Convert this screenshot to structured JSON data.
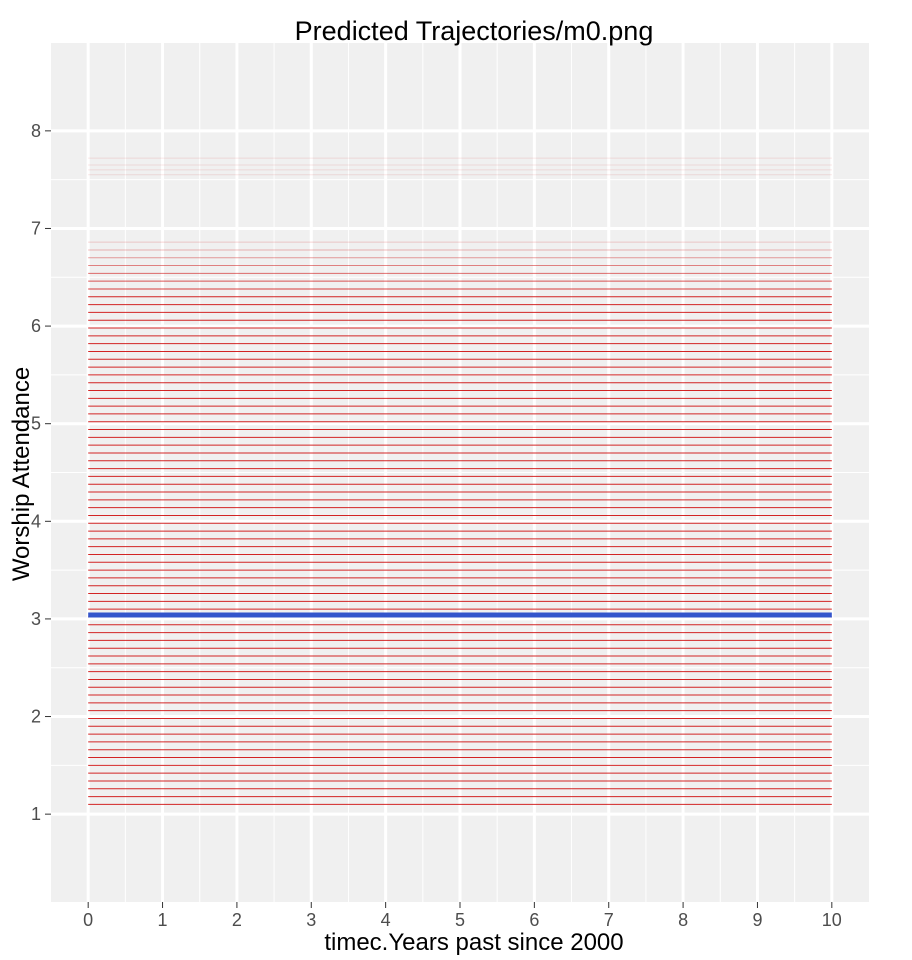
{
  "chart_data": {
    "type": "line",
    "title": "Predicted Trajectories/m0.png",
    "xlabel": "timec.Years past since 2000",
    "ylabel": "Worship Attendance",
    "x_range": [
      0,
      10
    ],
    "xlim": [
      -0.5,
      10.5
    ],
    "ylim": [
      0.1,
      8.9
    ],
    "x_ticks": [
      "0",
      "1",
      "2",
      "3",
      "4",
      "5",
      "6",
      "7",
      "8",
      "9",
      "10"
    ],
    "y_ticks": [
      "1",
      "2",
      "3",
      "4",
      "5",
      "6",
      "7",
      "8"
    ],
    "grid": true,
    "legend": "none",
    "individual_trajectories": {
      "color": "#cc0000",
      "intercepts": [
        1.1,
        1.18,
        1.26,
        1.34,
        1.42,
        1.5,
        1.58,
        1.66,
        1.74,
        1.82,
        1.9,
        1.98,
        2.06,
        2.14,
        2.22,
        2.3,
        2.38,
        2.46,
        2.54,
        2.62,
        2.7,
        2.78,
        2.86,
        2.94,
        3.02,
        3.1,
        3.18,
        3.26,
        3.34,
        3.42,
        3.5,
        3.58,
        3.66,
        3.74,
        3.82,
        3.9,
        3.98,
        4.06,
        4.14,
        4.22,
        4.3,
        4.38,
        4.46,
        4.54,
        4.62,
        4.7,
        4.78,
        4.86,
        4.94,
        5.02,
        5.1,
        5.18,
        5.26,
        5.34,
        5.42,
        5.5,
        5.58,
        5.66,
        5.74,
        5.82,
        5.9,
        5.98,
        6.06,
        6.14,
        6.22,
        6.3,
        6.38,
        6.46,
        6.54,
        6.62,
        6.7,
        6.78,
        6.86,
        7.55,
        7.6,
        7.65,
        7.72
      ],
      "slope": 0
    },
    "mean_trajectory": {
      "color": "#3355cc",
      "intercept": 3.04,
      "slope": 0
    }
  },
  "colors": {
    "panel_background": "#f0f0f0",
    "grid": "#ffffff",
    "tick_mark": "#333333"
  }
}
